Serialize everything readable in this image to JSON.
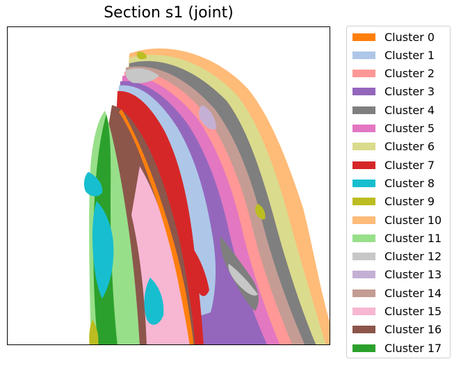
{
  "chart_data": {
    "type": "scatter",
    "title": "Section s1 (joint)",
    "xlabel": "",
    "ylabel": "",
    "axes_ticks": "none",
    "grid": false,
    "legend_placement": "outside-right",
    "series": [
      {
        "name": "Cluster 0",
        "color": "#ff7f0e"
      },
      {
        "name": "Cluster 1",
        "color": "#aec7e8"
      },
      {
        "name": "Cluster 2",
        "color": "#ff9896"
      },
      {
        "name": "Cluster 3",
        "color": "#9467bd"
      },
      {
        "name": "Cluster 4",
        "color": "#7f7f7f"
      },
      {
        "name": "Cluster 5",
        "color": "#e377c2"
      },
      {
        "name": "Cluster 6",
        "color": "#dbdb8d"
      },
      {
        "name": "Cluster 7",
        "color": "#d62728"
      },
      {
        "name": "Cluster 8",
        "color": "#17becf"
      },
      {
        "name": "Cluster 9",
        "color": "#bcbd22"
      },
      {
        "name": "Cluster 10",
        "color": "#ffbb78"
      },
      {
        "name": "Cluster 11",
        "color": "#98df8a"
      },
      {
        "name": "Cluster 12",
        "color": "#c7c7c7"
      },
      {
        "name": "Cluster 13",
        "color": "#c5b0d5"
      },
      {
        "name": "Cluster 14",
        "color": "#c49c94"
      },
      {
        "name": "Cluster 15",
        "color": "#f7b6d2"
      },
      {
        "name": "Cluster 16",
        "color": "#8c564b"
      },
      {
        "name": "Cluster 17",
        "color": "#2ca02c"
      }
    ]
  }
}
